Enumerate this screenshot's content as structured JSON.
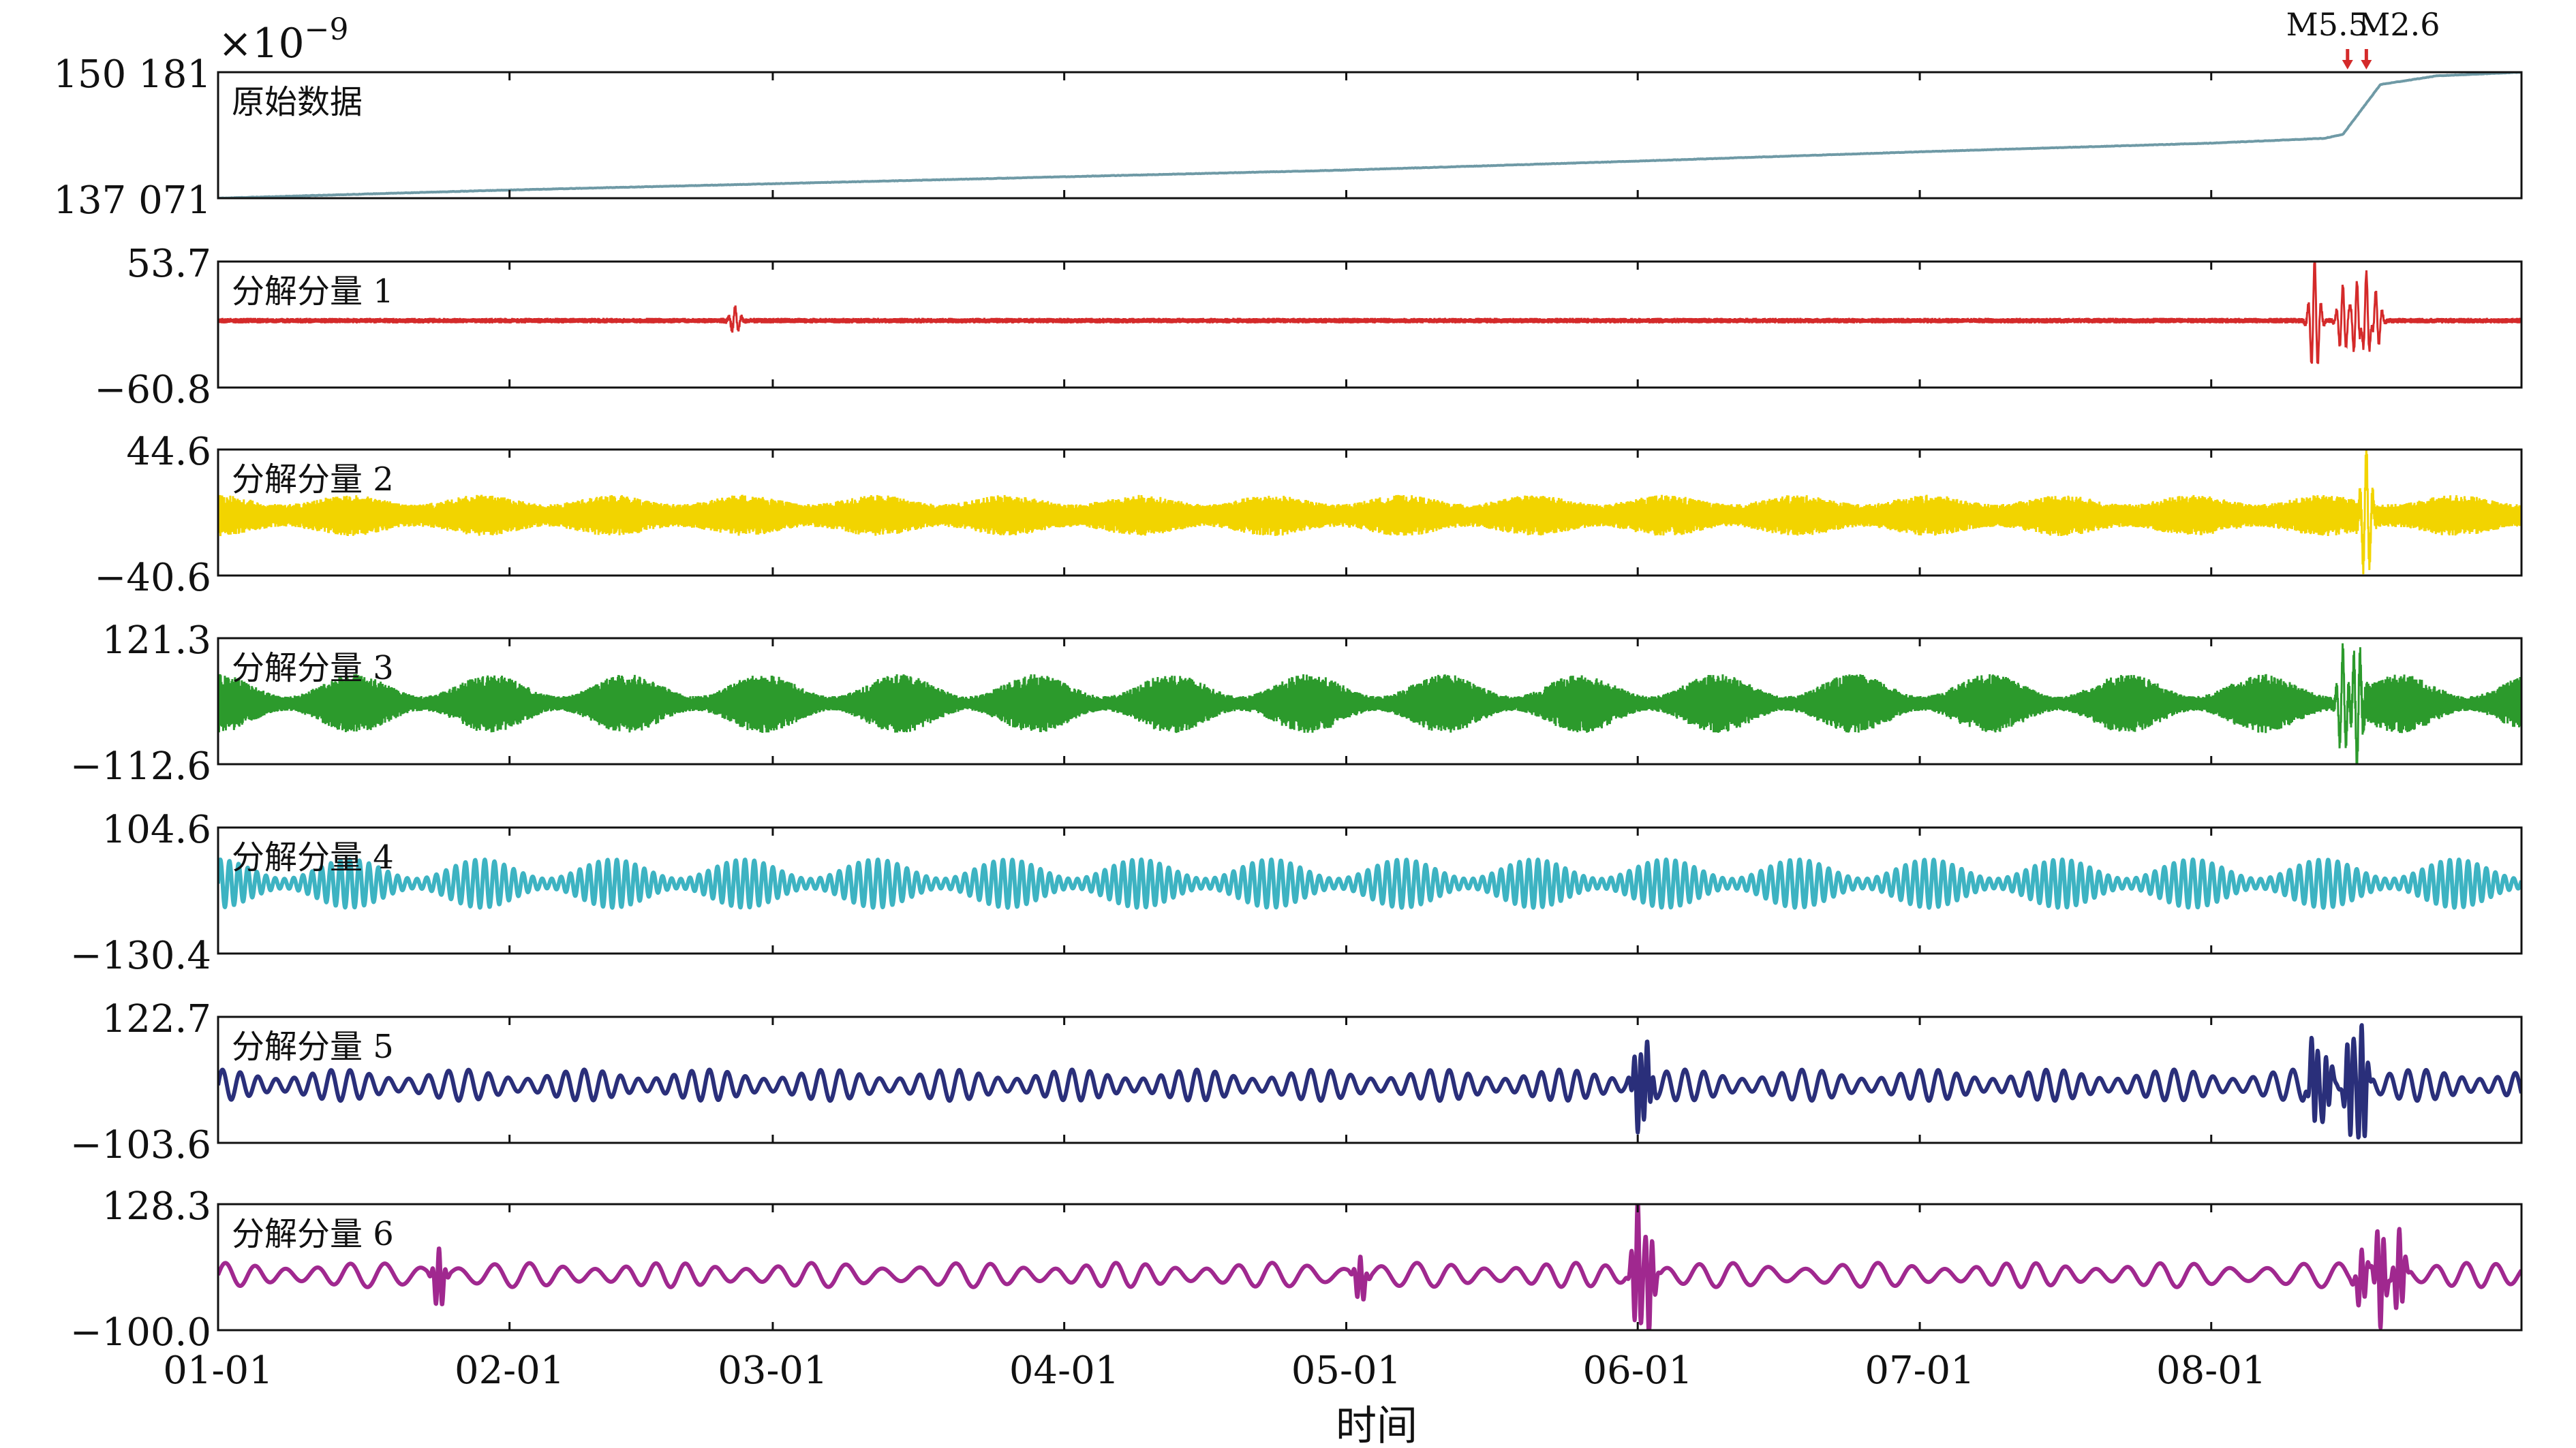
{
  "chart_data": {
    "type": "line",
    "title": "",
    "xlabel": "时间",
    "exponent_label": "×10",
    "exponent_power": "−9",
    "x_ticks": [
      "01-01",
      "02-01",
      "03-01",
      "04-01",
      "05-01",
      "06-01",
      "07-01",
      "08-01"
    ],
    "x_tick_days": [
      0,
      31,
      59,
      90,
      120,
      151,
      181,
      212
    ],
    "x_range_days": [
      0,
      245
    ],
    "event_annotations": [
      {
        "label": "M5.5",
        "day": 226.5
      },
      {
        "label": "M2.6",
        "day": 228.5
      }
    ],
    "panels": [
      {
        "name": "原始数据",
        "ymax_label": "150 181",
        "ymin_label": "137 071",
        "ylim": [
          137071,
          150181
        ],
        "color": "#6f9aa6",
        "kind": "trend",
        "trend_points": [
          [
            0,
            137071
          ],
          [
            30,
            137900
          ],
          [
            60,
            138600
          ],
          [
            90,
            139300
          ],
          [
            120,
            140000
          ],
          [
            150,
            140900
          ],
          [
            181,
            141900
          ],
          [
            212,
            142800
          ],
          [
            224,
            143300
          ],
          [
            226,
            143700
          ],
          [
            230,
            148900
          ],
          [
            236,
            149800
          ],
          [
            245,
            150181
          ]
        ]
      },
      {
        "name": "分解分量 1",
        "ymax_label": "53.7",
        "ymin_label": "−60.8",
        "ylim": [
          -60.8,
          53.7
        ],
        "color": "#d42a2a",
        "kind": "noise",
        "base_amplitude": 2.5,
        "spikes": [
          [
            55,
            12
          ],
          [
            223,
            55
          ],
          [
            226,
            32
          ],
          [
            227.5,
            38
          ],
          [
            228.5,
            48
          ],
          [
            229.5,
            30
          ]
        ]
      },
      {
        "name": "分解分量 2",
        "ymax_label": "44.6",
        "ymin_label": "−40.6",
        "ylim": [
          -40.6,
          44.6
        ],
        "color": "#f2d400",
        "kind": "band",
        "base_amplitude": 14,
        "envelope_period_days": 14,
        "envelope_depth": 0.45,
        "spikes": [
          [
            228.5,
            42
          ]
        ]
      },
      {
        "name": "分解分量 3",
        "ymax_label": "121.3",
        "ymin_label": "−112.6",
        "ylim": [
          -112.6,
          121.3
        ],
        "color": "#2c9a2c",
        "kind": "band",
        "base_amplitude": 55,
        "envelope_period_days": 14.5,
        "envelope_depth": 0.75,
        "spikes": [
          [
            226,
            100
          ],
          [
            227.5,
            -110
          ]
        ]
      },
      {
        "name": "分解分量 4",
        "ymax_label": "104.6",
        "ymin_label": "−130.4",
        "ylim": [
          -130.4,
          104.6
        ],
        "color": "#3db3c2",
        "kind": "wave",
        "carrier_period_days": 1.0,
        "base_amplitude": 45,
        "envelope_period_days": 14,
        "envelope_depth": 0.8,
        "spikes": []
      },
      {
        "name": "分解分量 5",
        "ymax_label": "122.7",
        "ymin_label": "−103.6",
        "ylim": [
          -103.6,
          122.7
        ],
        "color": "#2a2f7a",
        "kind": "wave",
        "carrier_period_days": 2.0,
        "base_amplitude": 28,
        "envelope_period_days": 13,
        "envelope_depth": 0.6,
        "spikes": [
          [
            151,
            -70
          ],
          [
            152,
            60
          ],
          [
            223,
            -85
          ],
          [
            224.2,
            60
          ],
          [
            226.8,
            -100
          ],
          [
            228,
            120
          ]
        ]
      },
      {
        "name": "分解分量 6",
        "ymax_label": "128.3",
        "ymin_label": "−100.0",
        "ylim": [
          -100.0,
          128.3
        ],
        "color": "#a0288f",
        "kind": "wave",
        "carrier_period_days": 3.5,
        "base_amplitude": 22,
        "envelope_period_days": 16,
        "envelope_depth": 0.5,
        "spikes": [
          [
            23.5,
            60
          ],
          [
            121.5,
            45
          ],
          [
            151,
            128
          ],
          [
            152.2,
            -100
          ],
          [
            228,
            55
          ],
          [
            230,
            -98
          ],
          [
            232,
            80
          ]
        ]
      }
    ]
  }
}
